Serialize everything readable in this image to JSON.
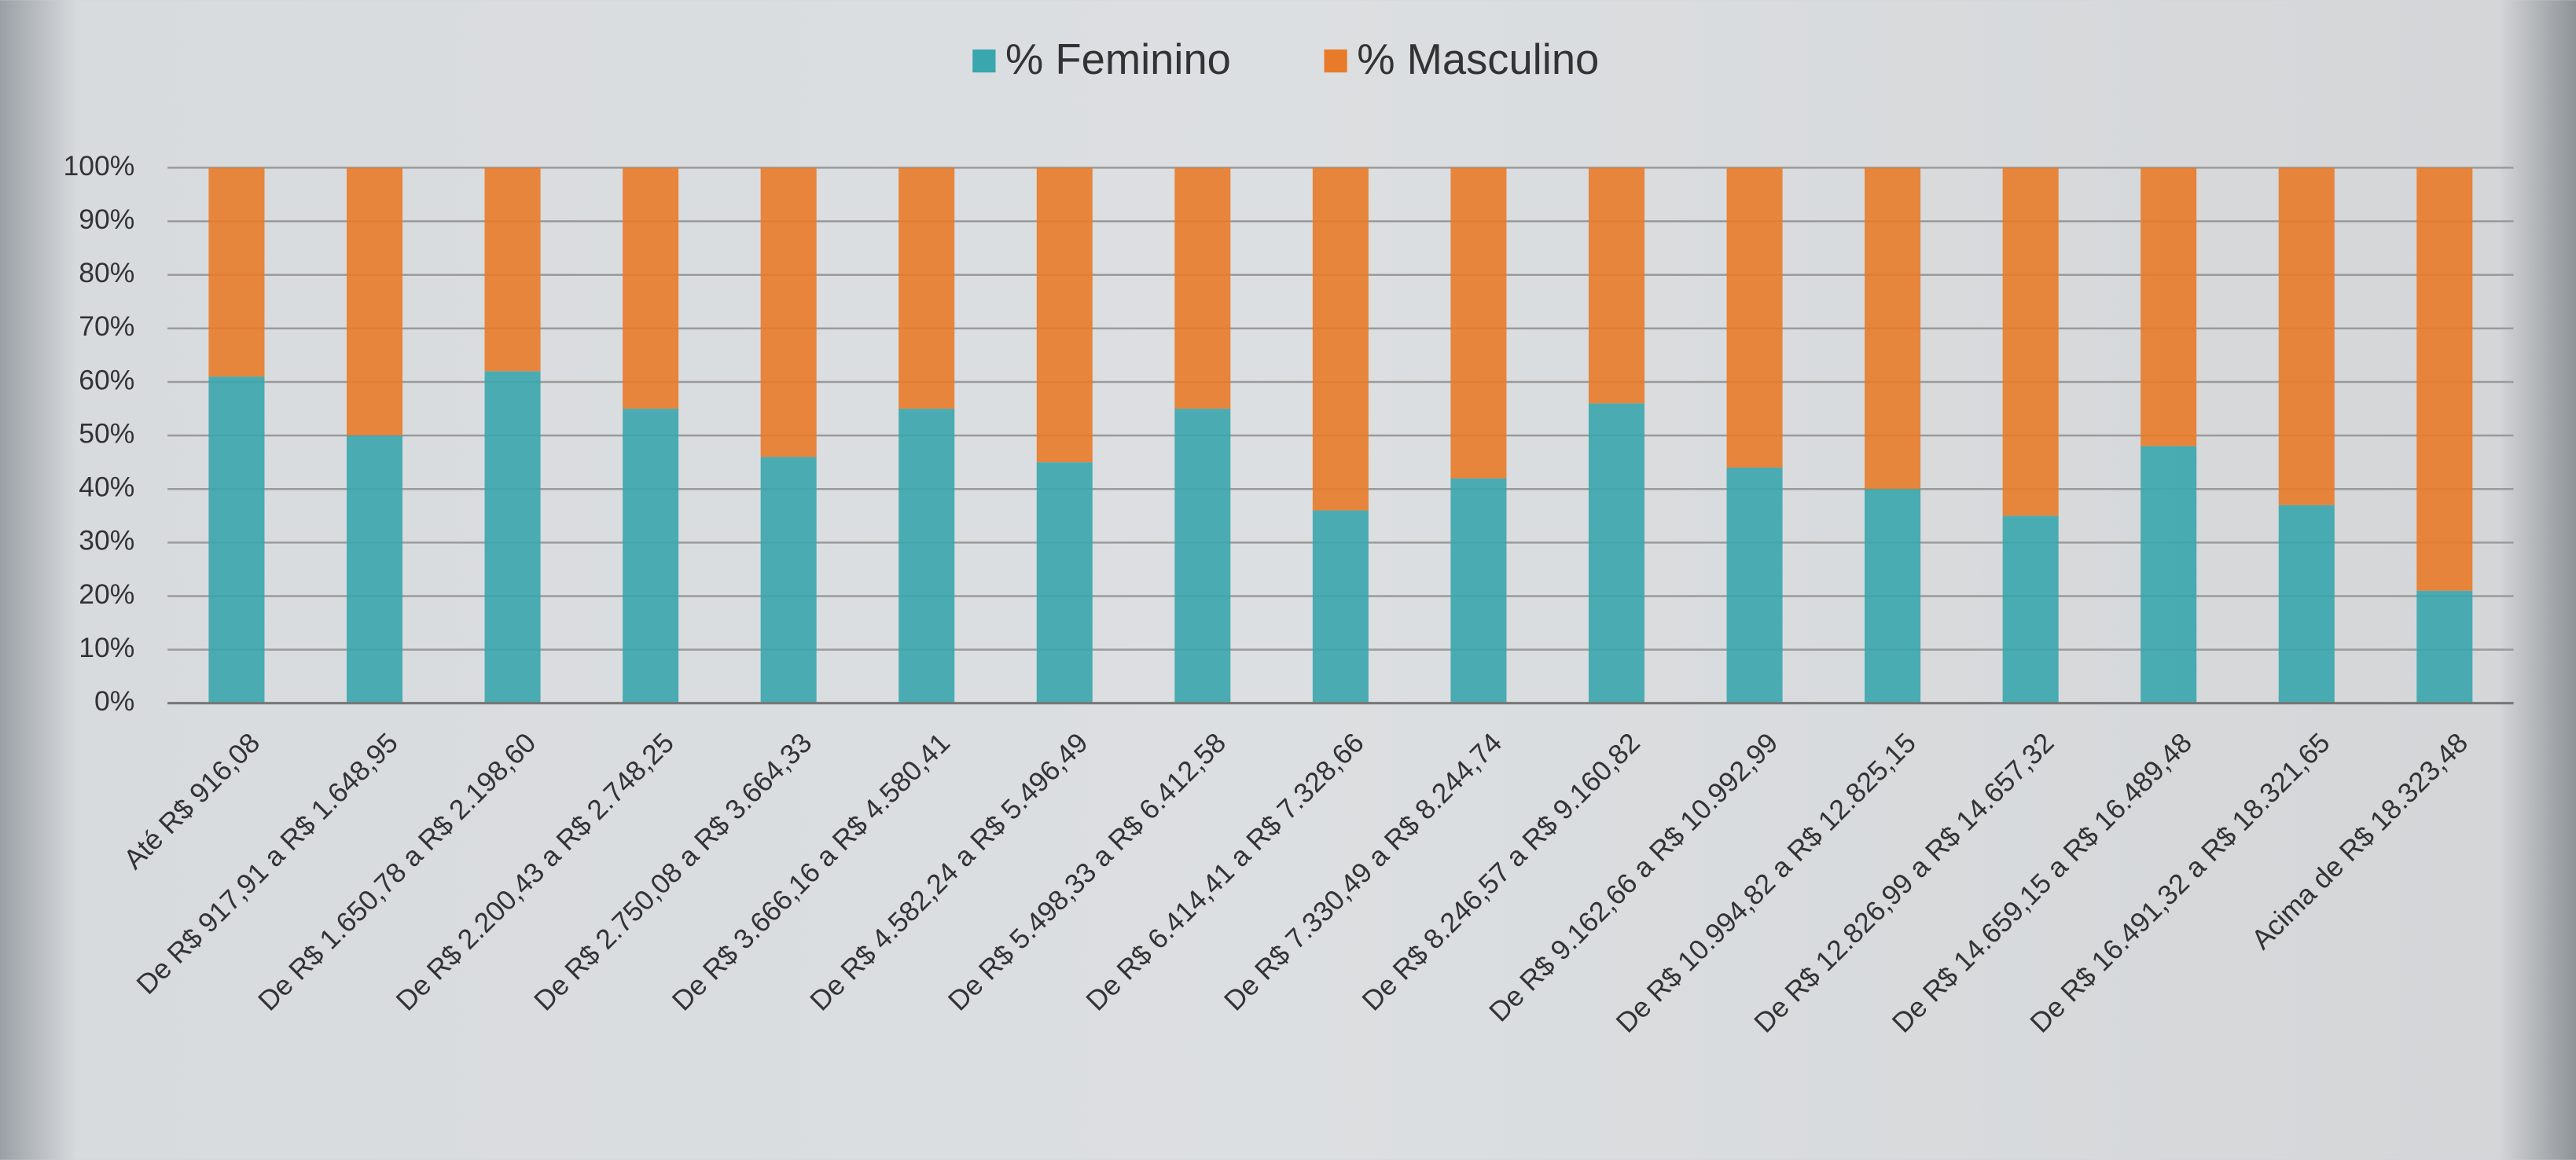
{
  "chart_data": {
    "type": "stacked-bar",
    "categories": [
      "Até R$ 916,08",
      "De R$ 917,91 a R$ 1.648,95",
      "De R$ 1.650,78 a R$ 2.198,60",
      "De R$ 2.200,43 a R$ 2.748,25",
      "De R$ 2.750,08 a R$ 3.664,33",
      "De R$ 3.666,16 a R$ 4.580,41",
      "De R$ 4.582,24 a R$ 5.496,49",
      "De R$ 5.498,33 a R$ 6.412,58",
      "De R$ 6.414,41 a R$ 7.328,66",
      "De R$ 7.330,49 a R$ 8.244,74",
      "De R$ 8.246,57 a R$ 9.160,82",
      "De R$ 9.162,66 a R$ 10.992,99",
      "De R$ 10.994,82 a R$ 12.825,15",
      "De R$ 12.826,99 a R$ 14.657,32",
      "De R$ 14.659,15 a R$ 16.489,48",
      "De R$ 16.491,32 a R$ 18.321,65",
      "Acima de R$ 18.323,48"
    ],
    "series": [
      {
        "name": "% Feminino",
        "color": "#3aa6ad",
        "values": [
          61,
          50,
          62,
          55,
          46,
          55,
          45,
          55,
          36,
          42,
          56,
          44,
          40,
          35,
          48,
          37,
          21
        ]
      },
      {
        "name": "% Masculino",
        "color": "#e87b2a",
        "values": [
          39,
          50,
          38,
          45,
          54,
          45,
          55,
          45,
          64,
          58,
          44,
          56,
          60,
          65,
          52,
          63,
          79
        ]
      }
    ],
    "ylim": [
      0,
      100
    ],
    "yticks": [
      {
        "value": 0,
        "label": "0%"
      },
      {
        "value": 10,
        "label": "10%"
      },
      {
        "value": 20,
        "label": "20%"
      },
      {
        "value": 30,
        "label": "30%"
      },
      {
        "value": 40,
        "label": "40%"
      },
      {
        "value": 50,
        "label": "50%"
      },
      {
        "value": 60,
        "label": "60%"
      },
      {
        "value": 70,
        "label": "70%"
      },
      {
        "value": 80,
        "label": "80%"
      },
      {
        "value": 90,
        "label": "90%"
      },
      {
        "value": 100,
        "label": "100%"
      }
    ],
    "grid": true,
    "legend": "top"
  }
}
